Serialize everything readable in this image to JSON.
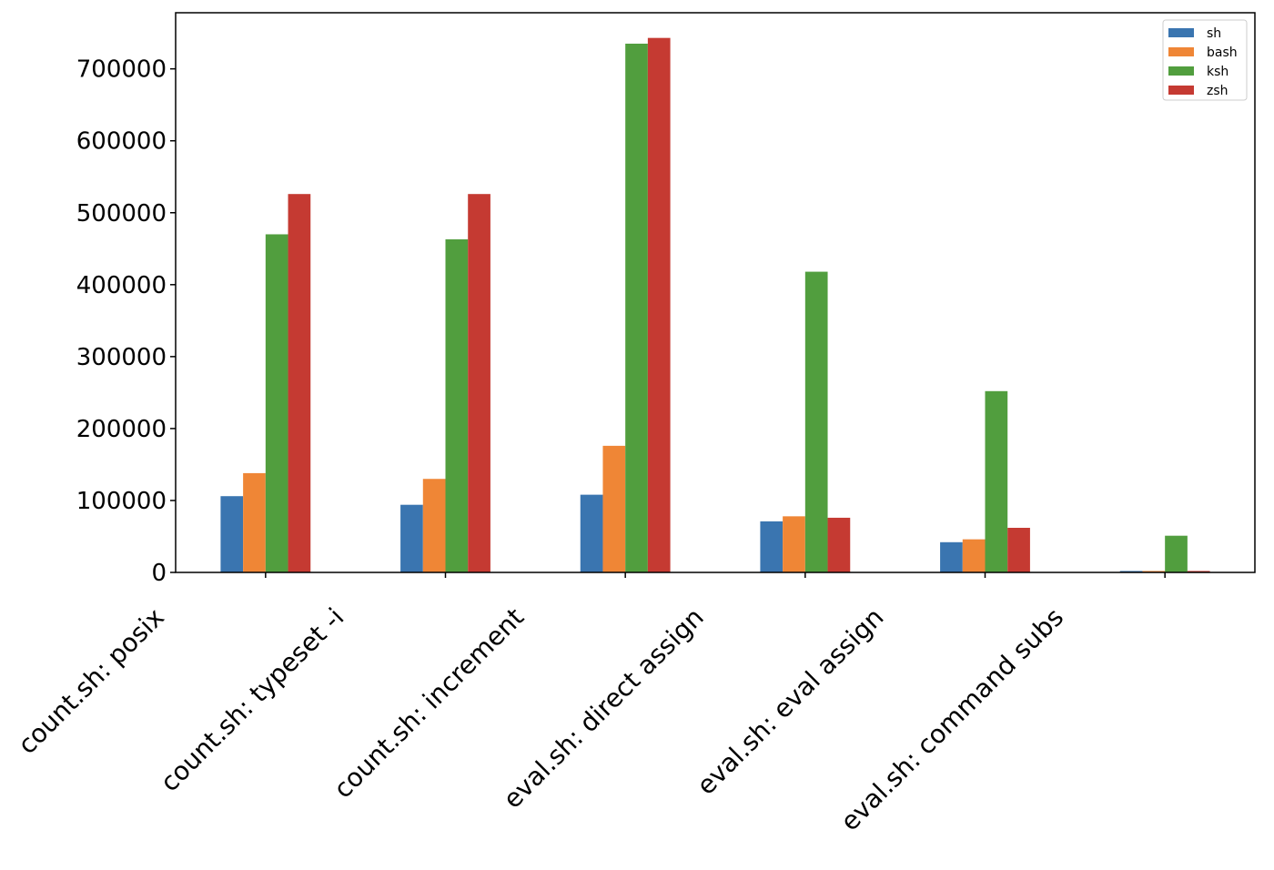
{
  "chart_data": {
    "type": "bar",
    "title": "",
    "xlabel": "",
    "ylabel": "",
    "categories": [
      "count.sh: posix",
      "count.sh: typeset -i",
      "count.sh: increment",
      "eval.sh: direct assign",
      "eval.sh: eval assign",
      "eval.sh: command subs"
    ],
    "series": [
      {
        "name": "sh",
        "color": "#3a75b0",
        "values": [
          106000,
          94000,
          108000,
          71000,
          42000,
          2000
        ]
      },
      {
        "name": "bash",
        "color": "#ef8636",
        "values": [
          138000,
          130000,
          176000,
          78000,
          46000,
          2000
        ]
      },
      {
        "name": "ksh",
        "color": "#519e3e",
        "values": [
          470000,
          463000,
          735000,
          418000,
          252000,
          51000
        ]
      },
      {
        "name": "zsh",
        "color": "#c53a32",
        "values": [
          526000,
          526000,
          743000,
          76000,
          62000,
          2000
        ]
      }
    ],
    "yticks": [
      "0",
      "100000",
      "200000",
      "300000",
      "400000",
      "500000",
      "600000",
      "700000"
    ],
    "ylim": [
      0,
      778000
    ],
    "grid": false,
    "legend_position": "top-right"
  }
}
